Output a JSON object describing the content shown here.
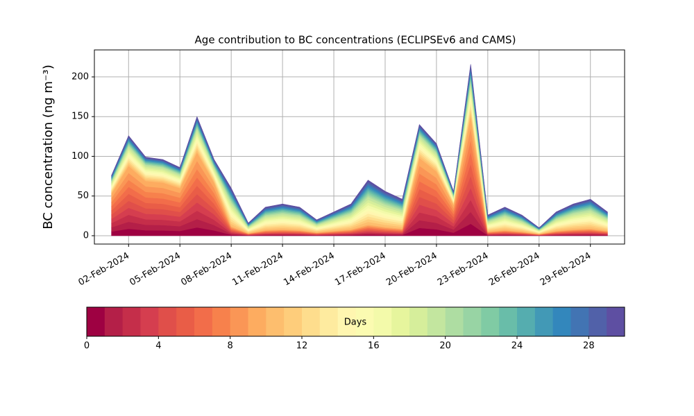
{
  "chart_data": {
    "type": "stacked_area",
    "title": "Age contribution to BC concentrations (ECLIPSEv6 and CAMS)",
    "y_label": "BC concentration (ng m⁻³)",
    "x": [
      "2024-02-01",
      "2024-02-02",
      "2024-02-03",
      "2024-02-04",
      "2024-02-05",
      "2024-02-06",
      "2024-02-07",
      "2024-02-08",
      "2024-02-09",
      "2024-02-10",
      "2024-02-11",
      "2024-02-12",
      "2024-02-13",
      "2024-02-14",
      "2024-02-15",
      "2024-02-16",
      "2024-02-17",
      "2024-02-18",
      "2024-02-19",
      "2024-02-20",
      "2024-02-21",
      "2024-02-22",
      "2024-02-23",
      "2024-02-24",
      "2024-02-25",
      "2024-02-26",
      "2024-02-27",
      "2024-02-28",
      "2024-02-29",
      "2024-03-01"
    ],
    "xlim": [
      "2024-01-31",
      "2024-03-02"
    ],
    "xticks": [
      {
        "value": "2024-02-02",
        "label": "02-Feb-2024"
      },
      {
        "value": "2024-02-05",
        "label": "05-Feb-2024"
      },
      {
        "value": "2024-02-08",
        "label": "08-Feb-2024"
      },
      {
        "value": "2024-02-11",
        "label": "11-Feb-2024"
      },
      {
        "value": "2024-02-14",
        "label": "14-Feb-2024"
      },
      {
        "value": "2024-02-17",
        "label": "17-Feb-2024"
      },
      {
        "value": "2024-02-20",
        "label": "20-Feb-2024"
      },
      {
        "value": "2024-02-23",
        "label": "23-Feb-2024"
      },
      {
        "value": "2024-02-26",
        "label": "26-Feb-2024"
      },
      {
        "value": "2024-02-29",
        "label": "29-Feb-2024"
      }
    ],
    "ylim": [
      -10.5,
      234
    ],
    "yticks": [
      0,
      50,
      100,
      150,
      200
    ],
    "grid": true,
    "series": [
      {
        "color": "#9e0142",
        "values": [
          5.3,
          8.8,
          6.9,
          6.7,
          6.0,
          10.5,
          6.7,
          1.2,
          0.3,
          0.7,
          0.8,
          0.7,
          0.4,
          0.6,
          0.8,
          1.4,
          1.1,
          0.9,
          9.8,
          8.1,
          3.9,
          15.1,
          0.5,
          0.7,
          0.5,
          0.2,
          0.6,
          0.8,
          0.9,
          0.6
        ]
      },
      {
        "color": "#b41f48",
        "values": [
          5.3,
          8.8,
          6.9,
          6.7,
          6.0,
          10.5,
          6.7,
          1.2,
          0.3,
          0.7,
          0.8,
          0.7,
          0.4,
          0.6,
          0.8,
          1.4,
          1.1,
          0.9,
          9.8,
          8.1,
          3.9,
          15.1,
          0.5,
          0.7,
          0.5,
          0.2,
          0.6,
          0.8,
          0.9,
          0.6
        ]
      },
      {
        "color": "#c52e4a",
        "values": [
          5.3,
          8.8,
          6.9,
          6.7,
          6.0,
          10.5,
          6.7,
          1.2,
          0.3,
          0.7,
          0.8,
          0.7,
          0.4,
          0.6,
          0.8,
          1.4,
          1.1,
          0.9,
          9.8,
          8.1,
          3.9,
          15.1,
          0.5,
          0.7,
          0.5,
          0.2,
          0.6,
          0.8,
          0.9,
          0.6
        ]
      },
      {
        "color": "#d53e4f",
        "values": [
          5.3,
          8.8,
          6.9,
          6.7,
          6.0,
          10.5,
          6.7,
          1.2,
          0.3,
          0.7,
          0.8,
          0.7,
          0.4,
          0.6,
          0.8,
          1.4,
          1.1,
          0.9,
          9.8,
          8.1,
          3.9,
          15.1,
          0.5,
          0.7,
          0.5,
          0.2,
          0.6,
          0.8,
          0.9,
          0.6
        ]
      },
      {
        "color": "#e04f4a",
        "values": [
          5.3,
          8.8,
          6.9,
          6.7,
          6.0,
          10.5,
          6.7,
          1.2,
          0.3,
          0.7,
          0.8,
          0.7,
          0.4,
          0.6,
          0.8,
          1.4,
          1.1,
          0.9,
          9.8,
          8.1,
          3.9,
          15.1,
          0.5,
          0.7,
          0.5,
          0.2,
          0.6,
          0.8,
          0.9,
          0.6
        ]
      },
      {
        "color": "#e95d47",
        "values": [
          5.3,
          8.8,
          6.9,
          6.7,
          6.0,
          10.5,
          6.7,
          1.2,
          0.3,
          0.7,
          0.8,
          0.7,
          0.4,
          0.6,
          0.8,
          1.4,
          1.1,
          0.9,
          9.8,
          8.1,
          3.9,
          15.1,
          0.5,
          0.7,
          0.5,
          0.2,
          0.6,
          0.8,
          0.9,
          0.6
        ]
      },
      {
        "color": "#f26d4a",
        "values": [
          5.3,
          8.8,
          6.9,
          6.7,
          6.0,
          10.5,
          6.7,
          1.2,
          0.3,
          0.7,
          0.8,
          0.7,
          0.4,
          0.6,
          0.8,
          1.4,
          1.1,
          0.9,
          9.8,
          8.1,
          3.9,
          15.1,
          0.5,
          0.7,
          0.5,
          0.2,
          0.6,
          0.8,
          0.9,
          0.6
        ]
      },
      {
        "color": "#f7814c",
        "values": [
          5.3,
          8.8,
          6.9,
          6.7,
          6.0,
          10.5,
          6.7,
          1.2,
          0.3,
          0.7,
          0.8,
          0.7,
          0.4,
          0.6,
          0.8,
          1.4,
          1.1,
          0.9,
          9.8,
          8.1,
          3.9,
          15.1,
          0.5,
          0.7,
          0.5,
          0.2,
          0.6,
          0.8,
          0.9,
          0.6
        ]
      },
      {
        "color": "#fa9656",
        "values": [
          5.3,
          8.8,
          6.9,
          6.7,
          6.0,
          10.5,
          6.7,
          1.2,
          0.3,
          0.7,
          0.8,
          0.7,
          0.4,
          0.6,
          0.8,
          1.4,
          1.1,
          0.9,
          9.8,
          8.1,
          3.9,
          15.1,
          0.5,
          0.7,
          0.5,
          0.2,
          0.6,
          0.8,
          0.9,
          0.6
        ]
      },
      {
        "color": "#fdac60",
        "values": [
          5.3,
          8.8,
          6.9,
          6.7,
          6.0,
          10.5,
          6.7,
          1.2,
          0.3,
          0.7,
          0.8,
          0.7,
          0.4,
          0.6,
          0.8,
          1.4,
          1.1,
          0.9,
          9.8,
          8.1,
          3.9,
          15.1,
          0.5,
          0.7,
          0.5,
          0.2,
          0.6,
          0.8,
          0.9,
          0.6
        ]
      },
      {
        "color": "#fdbe6e",
        "values": [
          1.5,
          2.5,
          2.0,
          1.9,
          1.7,
          3.0,
          1.9,
          3.0,
          0.8,
          1.8,
          2.0,
          1.8,
          1.0,
          1.5,
          2.0,
          3.5,
          2.8,
          2.3,
          2.8,
          2.3,
          1.1,
          4.3,
          1.3,
          1.8,
          1.3,
          0.5,
          1.5,
          2.0,
          2.3,
          1.5
        ]
      },
      {
        "color": "#fecd7b",
        "values": [
          1.5,
          2.5,
          2.0,
          1.9,
          1.7,
          3.0,
          1.9,
          3.0,
          0.8,
          1.8,
          2.0,
          1.8,
          1.0,
          1.5,
          2.0,
          3.5,
          2.8,
          2.3,
          2.8,
          2.3,
          1.1,
          4.3,
          1.3,
          1.8,
          1.3,
          0.5,
          1.5,
          2.0,
          2.3,
          1.5
        ]
      },
      {
        "color": "#fedd8d",
        "values": [
          1.5,
          2.5,
          2.0,
          1.9,
          1.7,
          3.0,
          1.9,
          3.0,
          0.8,
          1.8,
          2.0,
          1.8,
          1.0,
          1.5,
          2.0,
          3.5,
          2.8,
          2.3,
          2.8,
          2.3,
          1.1,
          4.3,
          1.3,
          1.8,
          1.3,
          0.5,
          1.5,
          2.0,
          2.3,
          1.5
        ]
      },
      {
        "color": "#feeb9f",
        "values": [
          1.5,
          2.5,
          2.0,
          1.9,
          1.7,
          3.0,
          1.9,
          3.0,
          0.8,
          1.8,
          2.0,
          1.8,
          1.0,
          1.5,
          2.0,
          3.5,
          2.8,
          2.3,
          2.8,
          2.3,
          1.1,
          4.3,
          1.3,
          1.8,
          1.3,
          0.5,
          1.5,
          2.0,
          2.3,
          1.5
        ]
      },
      {
        "color": "#fff6b0",
        "values": [
          1.5,
          2.5,
          2.0,
          1.9,
          1.7,
          3.0,
          1.9,
          3.0,
          0.8,
          1.8,
          2.0,
          1.8,
          1.0,
          1.5,
          2.0,
          3.5,
          2.8,
          2.3,
          2.8,
          2.3,
          1.1,
          4.3,
          1.3,
          1.8,
          1.3,
          0.5,
          1.5,
          2.0,
          2.3,
          1.5
        ]
      },
      {
        "color": "#fbfbb1",
        "values": [
          1.5,
          2.5,
          2.0,
          1.9,
          1.7,
          3.0,
          1.9,
          3.0,
          0.8,
          1.8,
          2.0,
          1.8,
          1.0,
          1.5,
          2.0,
          3.5,
          2.8,
          2.3,
          2.8,
          2.3,
          1.1,
          4.3,
          1.3,
          1.8,
          1.3,
          0.5,
          1.5,
          2.0,
          2.3,
          1.5
        ]
      },
      {
        "color": "#f3faaa",
        "values": [
          1.5,
          2.5,
          2.0,
          1.9,
          1.7,
          3.0,
          1.9,
          3.0,
          0.8,
          1.8,
          2.0,
          1.8,
          1.0,
          1.5,
          2.0,
          3.5,
          2.8,
          2.3,
          2.8,
          2.3,
          1.1,
          4.3,
          1.3,
          1.8,
          1.3,
          0.5,
          1.5,
          2.0,
          2.3,
          1.5
        ]
      },
      {
        "color": "#e6f59d",
        "values": [
          1.5,
          2.5,
          2.0,
          1.9,
          1.7,
          3.0,
          1.9,
          3.0,
          0.8,
          1.8,
          2.0,
          1.8,
          1.0,
          1.5,
          2.0,
          3.5,
          2.8,
          2.3,
          2.8,
          2.3,
          1.1,
          4.3,
          1.3,
          1.8,
          1.3,
          0.5,
          1.5,
          2.0,
          2.3,
          1.5
        ]
      },
      {
        "color": "#d6ee9b",
        "values": [
          1.5,
          2.5,
          2.0,
          1.9,
          1.7,
          3.0,
          1.9,
          3.0,
          0.8,
          1.8,
          2.0,
          1.8,
          1.0,
          1.5,
          2.0,
          3.5,
          2.8,
          2.3,
          2.8,
          2.3,
          1.1,
          4.3,
          1.3,
          1.8,
          1.3,
          0.5,
          1.5,
          2.0,
          2.3,
          1.5
        ]
      },
      {
        "color": "#c3e69f",
        "values": [
          1.5,
          2.5,
          2.0,
          1.9,
          1.7,
          3.0,
          1.9,
          3.0,
          0.8,
          1.8,
          2.0,
          1.8,
          1.0,
          1.5,
          2.0,
          3.5,
          2.8,
          2.3,
          2.8,
          2.3,
          1.1,
          4.3,
          1.3,
          1.8,
          1.3,
          0.5,
          1.5,
          2.0,
          2.3,
          1.5
        ]
      },
      {
        "color": "#aedda2",
        "values": [
          0.8,
          1.3,
          1.0,
          1.0,
          0.9,
          1.5,
          1.0,
          1.8,
          0.5,
          1.1,
          1.2,
          1.1,
          0.6,
          0.9,
          1.2,
          2.1,
          1.7,
          1.4,
          1.4,
          1.2,
          0.6,
          2.2,
          0.8,
          1.1,
          0.8,
          0.3,
          0.9,
          1.2,
          1.4,
          0.9
        ]
      },
      {
        "color": "#98d4a4",
        "values": [
          0.8,
          1.3,
          1.0,
          1.0,
          0.9,
          1.5,
          1.0,
          1.8,
          0.5,
          1.1,
          1.2,
          1.1,
          0.6,
          0.9,
          1.2,
          2.1,
          1.7,
          1.4,
          1.4,
          1.2,
          0.6,
          2.2,
          0.8,
          1.1,
          0.8,
          0.3,
          0.9,
          1.2,
          1.4,
          0.9
        ]
      },
      {
        "color": "#80cba4",
        "values": [
          0.8,
          1.3,
          1.0,
          1.0,
          0.9,
          1.5,
          1.0,
          1.8,
          0.5,
          1.1,
          1.2,
          1.1,
          0.6,
          0.9,
          1.2,
          2.1,
          1.7,
          1.4,
          1.4,
          1.2,
          0.6,
          2.2,
          0.8,
          1.1,
          0.8,
          0.3,
          0.9,
          1.2,
          1.4,
          0.9
        ]
      },
      {
        "color": "#69bda9",
        "values": [
          0.8,
          1.3,
          1.0,
          1.0,
          0.9,
          1.5,
          1.0,
          1.8,
          0.5,
          1.1,
          1.2,
          1.1,
          0.6,
          0.9,
          1.2,
          2.1,
          1.7,
          1.4,
          1.4,
          1.2,
          0.6,
          2.2,
          0.8,
          1.1,
          0.8,
          0.3,
          0.9,
          1.2,
          1.4,
          0.9
        ]
      },
      {
        "color": "#55adaf",
        "values": [
          0.8,
          1.3,
          1.0,
          1.0,
          0.9,
          1.5,
          1.0,
          1.8,
          0.5,
          1.1,
          1.2,
          1.1,
          0.6,
          0.9,
          1.2,
          2.1,
          1.7,
          1.4,
          1.4,
          1.2,
          0.6,
          2.2,
          0.8,
          1.1,
          0.8,
          0.3,
          0.9,
          1.2,
          1.4,
          0.9
        ]
      },
      {
        "color": "#4299b6",
        "values": [
          0.8,
          1.3,
          1.0,
          1.0,
          0.9,
          1.5,
          1.0,
          1.8,
          0.5,
          1.1,
          1.2,
          1.1,
          0.6,
          0.9,
          1.2,
          2.1,
          1.7,
          1.4,
          1.4,
          1.2,
          0.6,
          2.2,
          0.8,
          1.1,
          0.8,
          0.3,
          0.9,
          1.2,
          1.4,
          0.9
        ]
      },
      {
        "color": "#3387bc",
        "values": [
          0.8,
          1.3,
          1.0,
          1.0,
          0.9,
          1.5,
          1.0,
          1.8,
          0.5,
          1.1,
          1.2,
          1.1,
          0.6,
          0.9,
          1.2,
          2.1,
          1.7,
          1.4,
          1.4,
          1.2,
          0.6,
          2.2,
          0.8,
          1.1,
          0.8,
          0.3,
          0.9,
          1.2,
          1.4,
          0.9
        ]
      },
      {
        "color": "#4274b3",
        "values": [
          0.8,
          1.3,
          1.0,
          1.0,
          0.9,
          1.5,
          1.0,
          1.8,
          0.5,
          1.1,
          1.2,
          1.1,
          0.6,
          0.9,
          1.2,
          2.1,
          1.7,
          1.4,
          1.4,
          1.2,
          0.6,
          2.2,
          0.8,
          1.1,
          0.8,
          0.3,
          0.9,
          1.2,
          1.4,
          0.9
        ]
      },
      {
        "color": "#5161a9",
        "values": [
          0.8,
          1.3,
          1.0,
          1.0,
          0.9,
          1.5,
          1.0,
          1.8,
          0.5,
          1.1,
          1.2,
          1.1,
          0.6,
          0.9,
          1.2,
          2.1,
          1.7,
          1.4,
          1.4,
          1.2,
          0.6,
          2.2,
          0.8,
          1.1,
          0.8,
          0.3,
          0.9,
          1.2,
          1.4,
          0.9
        ]
      },
      {
        "color": "#5e4fa2",
        "values": [
          0.8,
          1.3,
          1.0,
          1.0,
          0.9,
          1.5,
          1.0,
          1.8,
          0.5,
          1.1,
          1.2,
          1.1,
          0.6,
          0.9,
          1.2,
          2.1,
          1.7,
          1.4,
          1.4,
          1.2,
          0.6,
          2.2,
          0.8,
          1.1,
          0.8,
          0.3,
          0.9,
          1.2,
          1.4,
          0.9
        ]
      }
    ],
    "colorbar": {
      "label": "Days",
      "lim": [
        0,
        30
      ],
      "ticks": [
        0,
        4,
        8,
        12,
        16,
        20,
        24,
        28
      ]
    }
  }
}
